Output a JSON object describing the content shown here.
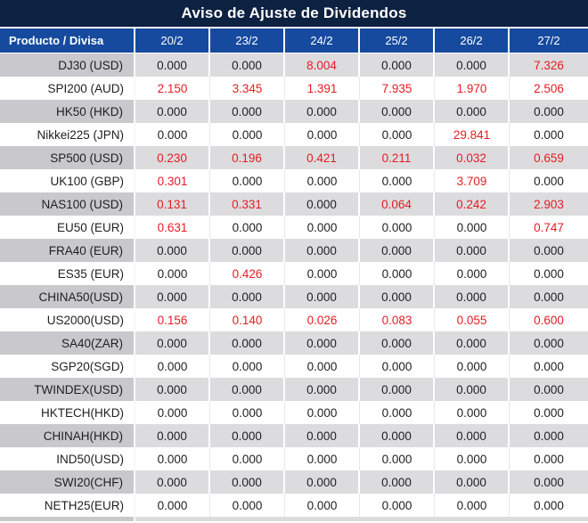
{
  "chart_data": {
    "type": "table",
    "title": "Aviso de Ajuste de Dividendos",
    "columns": [
      "Producto / Divisa",
      "20/2",
      "23/2",
      "24/2",
      "25/2",
      "26/2",
      "27/2"
    ],
    "rows": [
      {
        "product": "DJ30 (USD)",
        "values": [
          "0.000",
          "0.000",
          "8.004",
          "0.000",
          "0.000",
          "7.326"
        ],
        "red": [
          0,
          0,
          1,
          0,
          0,
          1
        ]
      },
      {
        "product": "SPI200 (AUD)",
        "values": [
          "2.150",
          "3.345",
          "1.391",
          "7.935",
          "1.970",
          "2.506"
        ],
        "red": [
          1,
          1,
          1,
          1,
          1,
          1
        ]
      },
      {
        "product": "HK50 (HKD)",
        "values": [
          "0.000",
          "0.000",
          "0.000",
          "0.000",
          "0.000",
          "0.000"
        ],
        "red": [
          0,
          0,
          0,
          0,
          0,
          0
        ]
      },
      {
        "product": "Nikkei225 (JPN)",
        "values": [
          "0.000",
          "0.000",
          "0.000",
          "0.000",
          "29.841",
          "0.000"
        ],
        "red": [
          0,
          0,
          0,
          0,
          1,
          0
        ]
      },
      {
        "product": "SP500 (USD)",
        "values": [
          "0.230",
          "0.196",
          "0.421",
          "0.211",
          "0.032",
          "0.659"
        ],
        "red": [
          1,
          1,
          1,
          1,
          1,
          1
        ]
      },
      {
        "product": "UK100 (GBP)",
        "values": [
          "0.301",
          "0.000",
          "0.000",
          "0.000",
          "3.709",
          "0.000"
        ],
        "red": [
          1,
          0,
          0,
          0,
          1,
          0
        ]
      },
      {
        "product": "NAS100 (USD)",
        "values": [
          "0.131",
          "0.331",
          "0.000",
          "0.064",
          "0.242",
          "2.903"
        ],
        "red": [
          1,
          1,
          0,
          1,
          1,
          1
        ]
      },
      {
        "product": "EU50 (EUR)",
        "values": [
          "0.631",
          "0.000",
          "0.000",
          "0.000",
          "0.000",
          "0.747"
        ],
        "red": [
          1,
          0,
          0,
          0,
          0,
          1
        ]
      },
      {
        "product": "FRA40 (EUR)",
        "values": [
          "0.000",
          "0.000",
          "0.000",
          "0.000",
          "0.000",
          "0.000"
        ],
        "red": [
          0,
          0,
          0,
          0,
          0,
          0
        ]
      },
      {
        "product": "ES35 (EUR)",
        "values": [
          "0.000",
          "0.426",
          "0.000",
          "0.000",
          "0.000",
          "0.000"
        ],
        "red": [
          0,
          1,
          0,
          0,
          0,
          0
        ]
      },
      {
        "product": "CHINA50(USD)",
        "values": [
          "0.000",
          "0.000",
          "0.000",
          "0.000",
          "0.000",
          "0.000"
        ],
        "red": [
          0,
          0,
          0,
          0,
          0,
          0
        ]
      },
      {
        "product": "US2000(USD)",
        "values": [
          "0.156",
          "0.140",
          "0.026",
          "0.083",
          "0.055",
          "0.600"
        ],
        "red": [
          1,
          1,
          1,
          1,
          1,
          1
        ]
      },
      {
        "product": "SA40(ZAR)",
        "values": [
          "0.000",
          "0.000",
          "0.000",
          "0.000",
          "0.000",
          "0.000"
        ],
        "red": [
          0,
          0,
          0,
          0,
          0,
          0
        ]
      },
      {
        "product": "SGP20(SGD)",
        "values": [
          "0.000",
          "0.000",
          "0.000",
          "0.000",
          "0.000",
          "0.000"
        ],
        "red": [
          0,
          0,
          0,
          0,
          0,
          0
        ]
      },
      {
        "product": "TWINDEX(USD)",
        "values": [
          "0.000",
          "0.000",
          "0.000",
          "0.000",
          "0.000",
          "0.000"
        ],
        "red": [
          0,
          0,
          0,
          0,
          0,
          0
        ]
      },
      {
        "product": "HKTECH(HKD)",
        "values": [
          "0.000",
          "0.000",
          "0.000",
          "0.000",
          "0.000",
          "0.000"
        ],
        "red": [
          0,
          0,
          0,
          0,
          0,
          0
        ]
      },
      {
        "product": "CHINAH(HKD)",
        "values": [
          "0.000",
          "0.000",
          "0.000",
          "0.000",
          "0.000",
          "0.000"
        ],
        "red": [
          0,
          0,
          0,
          0,
          0,
          0
        ]
      },
      {
        "product": "IND50(USD)",
        "values": [
          "0.000",
          "0.000",
          "0.000",
          "0.000",
          "0.000",
          "0.000"
        ],
        "red": [
          0,
          0,
          0,
          0,
          0,
          0
        ]
      },
      {
        "product": "SWI20(CHF)",
        "values": [
          "0.000",
          "0.000",
          "0.000",
          "0.000",
          "0.000",
          "0.000"
        ],
        "red": [
          0,
          0,
          0,
          0,
          0,
          0
        ]
      },
      {
        "product": "NETH25(EUR)",
        "values": [
          "0.000",
          "0.000",
          "0.000",
          "0.000",
          "0.000",
          "0.000"
        ],
        "red": [
          0,
          0,
          0,
          0,
          0,
          0
        ]
      }
    ],
    "layout": {
      "striped": true,
      "red_means": "non-zero dividend adjustment",
      "header_position": "top"
    }
  },
  "colors": {
    "title_bg": "#0d2140",
    "header_bg": "#164a9e",
    "row_gray_bg": "#dcdcde",
    "row_gray_product_bg": "#c9c9cd",
    "row_white_bg": "#ffffff",
    "red_value_text": "#e51c23",
    "value_text": "#1f1f1f",
    "header_text": "#ffffff"
  }
}
